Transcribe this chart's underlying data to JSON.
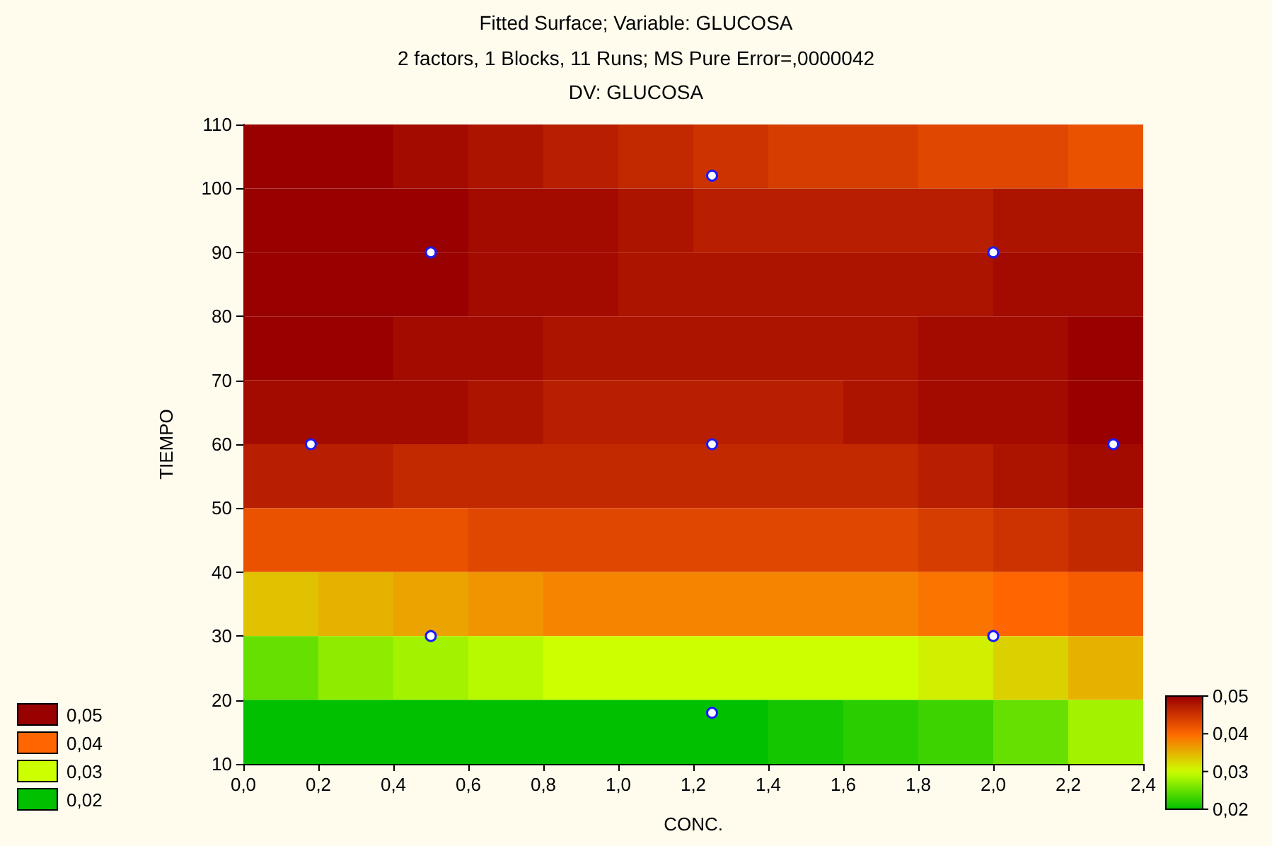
{
  "chart_data": {
    "type": "heatmap",
    "title": "Fitted Surface; Variable: GLUCOSA",
    "subtitle": "2 factors, 1 Blocks, 11 Runs; MS Pure Error=,0000042\nDV: GLUCOSA",
    "xlabel": "CONC.",
    "ylabel": "TIEMPO",
    "x": [
      0.1,
      0.3,
      0.5,
      0.7,
      0.9,
      1.1,
      1.3,
      1.5,
      1.7,
      1.9,
      2.1,
      2.3
    ],
    "y": [
      105,
      95,
      85,
      75,
      65,
      55,
      45,
      35,
      25,
      15
    ],
    "cells": [
      [
        0.05,
        0.05,
        0.049,
        0.048,
        0.047,
        0.046,
        0.045,
        0.044,
        0.044,
        0.043,
        0.043,
        0.042
      ],
      [
        0.05,
        0.05,
        0.05,
        0.049,
        0.049,
        0.048,
        0.047,
        0.047,
        0.047,
        0.047,
        0.048,
        0.048
      ],
      [
        0.05,
        0.05,
        0.05,
        0.049,
        0.049,
        0.048,
        0.048,
        0.048,
        0.048,
        0.048,
        0.049,
        0.049
      ],
      [
        0.05,
        0.05,
        0.049,
        0.049,
        0.048,
        0.048,
        0.048,
        0.048,
        0.048,
        0.049,
        0.049,
        0.05
      ],
      [
        0.049,
        0.049,
        0.049,
        0.048,
        0.047,
        0.047,
        0.047,
        0.047,
        0.048,
        0.049,
        0.049,
        0.05
      ],
      [
        0.047,
        0.047,
        0.046,
        0.046,
        0.046,
        0.046,
        0.046,
        0.046,
        0.046,
        0.047,
        0.048,
        0.049
      ],
      [
        0.042,
        0.042,
        0.042,
        0.043,
        0.043,
        0.043,
        0.043,
        0.043,
        0.043,
        0.044,
        0.045,
        0.046
      ],
      [
        0.034,
        0.035,
        0.036,
        0.037,
        0.038,
        0.038,
        0.038,
        0.038,
        0.038,
        0.039,
        0.04,
        0.041
      ],
      [
        0.025,
        0.027,
        0.028,
        0.029,
        0.03,
        0.03,
        0.03,
        0.03,
        0.03,
        0.031,
        0.033,
        0.035
      ],
      [
        0.02,
        0.02,
        0.02,
        0.02,
        0.02,
        0.02,
        0.02,
        0.021,
        0.022,
        0.023,
        0.025,
        0.028
      ]
    ],
    "clim": [
      0.02,
      0.05
    ],
    "cticks": [
      {
        "value": 0.02,
        "label": "0,02"
      },
      {
        "value": 0.03,
        "label": "0,03"
      },
      {
        "value": 0.04,
        "label": "0,04"
      },
      {
        "value": 0.05,
        "label": "0,05"
      }
    ],
    "xlim": [
      0,
      2.4
    ],
    "xticks": [
      {
        "value": 0,
        "label": "0,0"
      },
      {
        "value": 0.2,
        "label": "0,2"
      },
      {
        "value": 0.4,
        "label": "0,4"
      },
      {
        "value": 0.6,
        "label": "0,6"
      },
      {
        "value": 0.8,
        "label": "0,8"
      },
      {
        "value": 1.0,
        "label": "1,0"
      },
      {
        "value": 1.2,
        "label": "1,2"
      },
      {
        "value": 1.4,
        "label": "1,4"
      },
      {
        "value": 1.6,
        "label": "1,6"
      },
      {
        "value": 1.8,
        "label": "1,8"
      },
      {
        "value": 2.0,
        "label": "2,0"
      },
      {
        "value": 2.2,
        "label": "2,2"
      },
      {
        "value": 2.4,
        "label": "2,4"
      }
    ],
    "ylim": [
      10,
      110
    ],
    "yticks": [
      10,
      20,
      30,
      40,
      50,
      60,
      70,
      80,
      90,
      100,
      110
    ],
    "series": [
      {
        "type": "scatter",
        "color": "#ffffff",
        "marker": "circle",
        "x": [
          0.18,
          0.5,
          0.5,
          1.25,
          1.25,
          1.25,
          2.0,
          2.0,
          2.32
        ],
        "values": [
          60,
          90,
          30,
          102,
          60,
          18,
          90,
          30,
          60
        ]
      }
    ],
    "grid": false
  }
}
